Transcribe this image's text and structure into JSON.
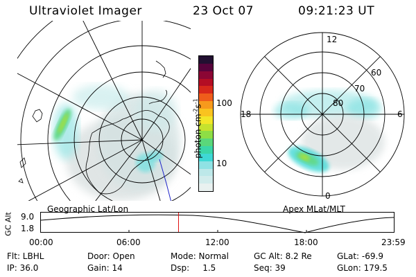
{
  "header": {
    "title": "Ultraviolet Imager",
    "date": "23 Oct 07",
    "time": "09:21:23 UT"
  },
  "left_panel": {
    "label": "Geographic Lat/Lon"
  },
  "right_panel": {
    "label": "Apex  MLat/MLT",
    "mlt_labels": [
      "12",
      "18",
      "6",
      "0"
    ],
    "lat_labels": [
      "60",
      "70",
      "80"
    ]
  },
  "colorbar": {
    "unit_label": "photon cm",
    "unit_sup1": "-2",
    "unit_s": "s",
    "unit_sup2": "-1",
    "ticks": [
      "100",
      "10"
    ],
    "colors": [
      "#e9f1f0",
      "#d2ecec",
      "#bde8e9",
      "#8fe2e4",
      "#3fd8d5",
      "#3bd6a8",
      "#5ad77a",
      "#8ede45",
      "#c5e22e",
      "#f2e628",
      "#f9c31f",
      "#f79a1c",
      "#ef5d1b",
      "#d7281b",
      "#b40d24",
      "#8b0634",
      "#57033c",
      "#221031"
    ]
  },
  "timeline": {
    "y_label": "GC Alt",
    "y_max": "9.0",
    "y_min": "1.8",
    "x_ticks": [
      "00:00",
      "06:00",
      "12:00",
      "18:00",
      "23:59"
    ],
    "marker_fraction": 0.39
  },
  "status": {
    "flt": "Flt: LBHL",
    "ip": "IP: 36.0",
    "door": "Door: Open",
    "gain": "Gain: 14",
    "mode": "Mode: Normal",
    "dsp": "Dsp:     1.5",
    "gc_alt": "GC Alt: 8.2 Re",
    "seq": "Seq: 39",
    "glat": "GLat: -69.9",
    "glon": "GLon: 179.5"
  }
}
